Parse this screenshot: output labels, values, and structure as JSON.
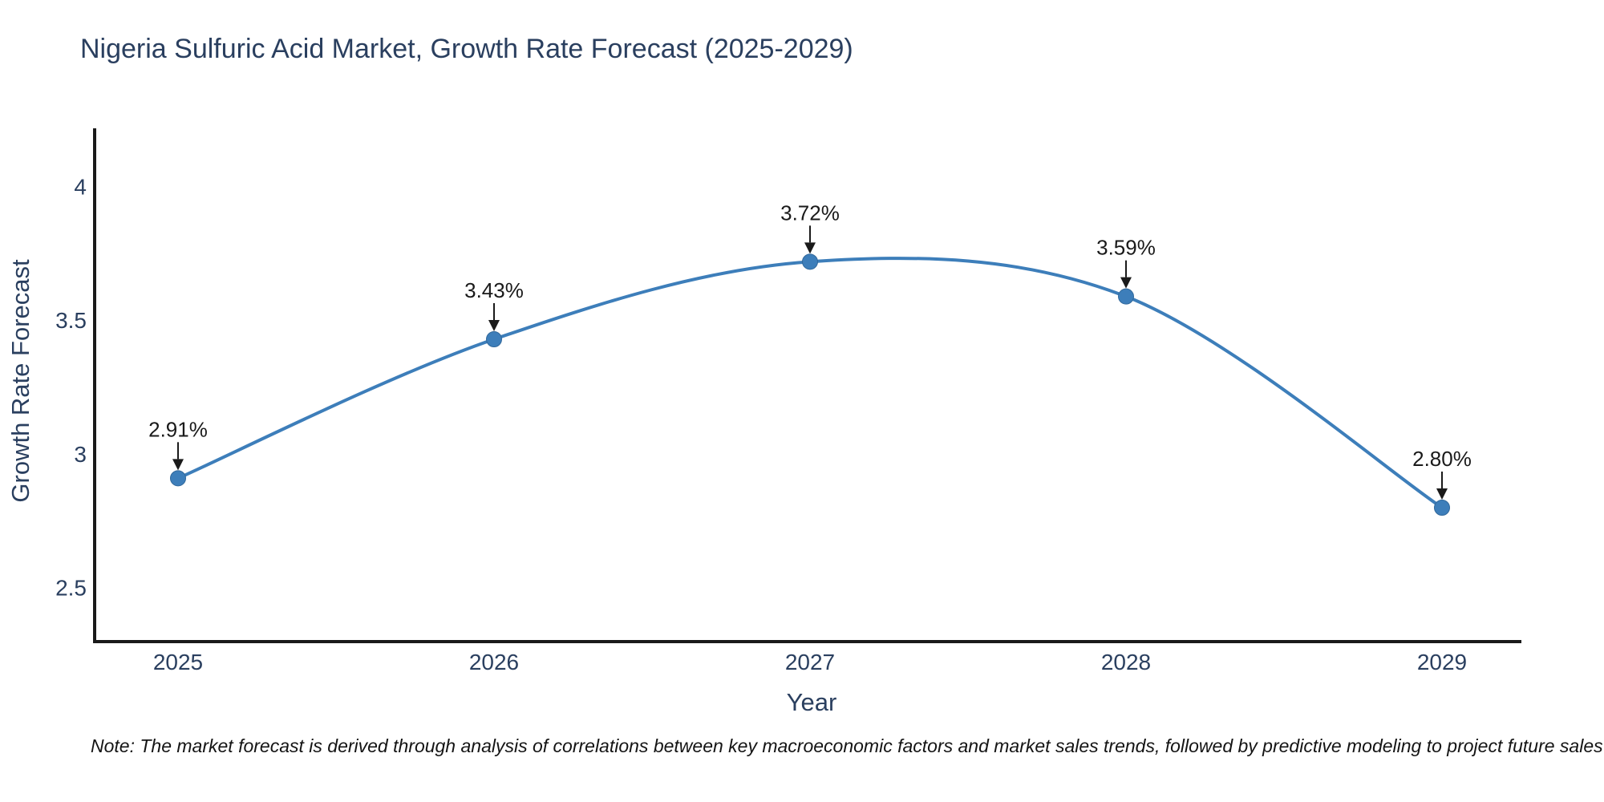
{
  "title": "Nigeria Sulfuric Acid Market, Growth Rate Forecast (2025-2029)",
  "note": "Note: The market forecast is derived through analysis of correlations between key macroeconomic factors and market sales trends, followed by predictive modeling to project future sales",
  "chart_data": {
    "type": "line",
    "title": "Nigeria Sulfuric Acid Market, Growth Rate Forecast (2025-2029)",
    "xlabel": "Year",
    "ylabel": "Growth Rate Forecast",
    "x": [
      2025,
      2026,
      2027,
      2028,
      2029
    ],
    "series": [
      {
        "name": "Growth Rate Forecast",
        "values": [
          2.91,
          3.43,
          3.72,
          3.59,
          2.8
        ]
      }
    ],
    "point_labels": [
      "2.91%",
      "3.43%",
      "3.72%",
      "3.59%",
      "2.80%"
    ],
    "yticks": [
      4,
      3.5,
      3,
      2.5
    ],
    "xticks": [
      2025,
      2026,
      2027,
      2028,
      2029
    ],
    "ylim": [
      2.3,
      4.22
    ],
    "curve": "spline",
    "grid": false,
    "legend": "none",
    "colors": {
      "line": "#3d7eba",
      "marker": "#3d7eba",
      "marker_edge": "#31689b",
      "axis": "#1a1a1a",
      "tick_text": "#2a3f5f",
      "annotation": "#1a1a1a"
    }
  }
}
